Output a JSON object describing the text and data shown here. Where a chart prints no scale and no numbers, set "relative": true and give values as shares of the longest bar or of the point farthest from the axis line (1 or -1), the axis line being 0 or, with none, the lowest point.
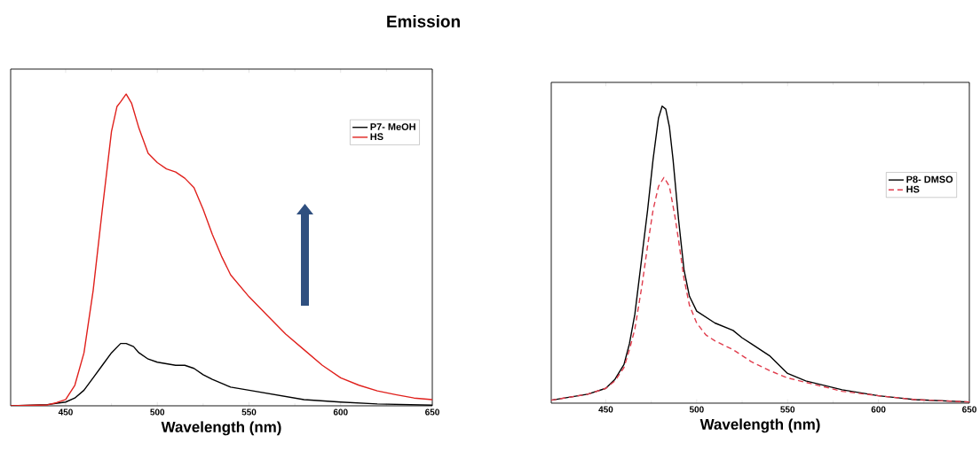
{
  "chart_data": [
    {
      "type": "line",
      "relative": true,
      "title": "Emission",
      "xlabel": "Wavelength (nm)",
      "xlim": [
        420,
        650
      ],
      "xticks": [
        450,
        500,
        550,
        600,
        650
      ],
      "legend": "top right",
      "tick_labels": "x",
      "series": [
        {
          "name": "P7- MeOH",
          "color": "#000000",
          "x": [
            420,
            440,
            450,
            455,
            460,
            465,
            470,
            475,
            480,
            483,
            487,
            490,
            495,
            500,
            510,
            515,
            520,
            525,
            530,
            540,
            550,
            560,
            570,
            580,
            600,
            620,
            650
          ],
          "values": [
            0,
            0.004,
            0.012,
            0.025,
            0.05,
            0.09,
            0.13,
            0.17,
            0.2,
            0.2,
            0.19,
            0.17,
            0.15,
            0.14,
            0.13,
            0.13,
            0.12,
            0.1,
            0.085,
            0.06,
            0.05,
            0.04,
            0.03,
            0.02,
            0.012,
            0.006,
            0.002
          ]
        },
        {
          "name": "HS",
          "color": "#e0201c",
          "x": [
            420,
            440,
            445,
            450,
            455,
            460,
            465,
            470,
            475,
            478,
            480,
            483,
            486,
            490,
            495,
            500,
            505,
            510,
            515,
            520,
            525,
            530,
            535,
            540,
            550,
            560,
            570,
            580,
            590,
            600,
            610,
            620,
            630,
            640,
            650
          ],
          "values": [
            0,
            0.003,
            0.01,
            0.02,
            0.066,
            0.17,
            0.37,
            0.63,
            0.88,
            0.96,
            0.975,
            1.0,
            0.97,
            0.89,
            0.81,
            0.78,
            0.76,
            0.75,
            0.73,
            0.7,
            0.63,
            0.55,
            0.48,
            0.42,
            0.35,
            0.29,
            0.23,
            0.18,
            0.13,
            0.09,
            0.066,
            0.048,
            0.036,
            0.025,
            0.02
          ]
        }
      ]
    },
    {
      "type": "line",
      "relative": true,
      "xlabel": "Wavelength (nm)",
      "xlim": [
        420,
        650
      ],
      "xticks": [
        450,
        500,
        550,
        600,
        650
      ],
      "legend": "right",
      "tick_labels": "x",
      "series": [
        {
          "name": "P8- DMSO",
          "color": "#000000",
          "x": [
            420,
            440,
            450,
            455,
            460,
            463,
            466,
            470,
            473,
            476,
            479,
            481,
            483,
            485,
            487,
            490,
            493,
            496,
            500,
            505,
            510,
            520,
            525,
            530,
            540,
            545,
            550,
            560,
            570,
            580,
            600,
            620,
            650
          ],
          "values": [
            0.01,
            0.03,
            0.05,
            0.08,
            0.13,
            0.2,
            0.3,
            0.5,
            0.65,
            0.82,
            0.96,
            1.0,
            0.99,
            0.93,
            0.82,
            0.62,
            0.45,
            0.36,
            0.31,
            0.29,
            0.27,
            0.245,
            0.22,
            0.2,
            0.16,
            0.13,
            0.1,
            0.075,
            0.06,
            0.045,
            0.025,
            0.012,
            0.004
          ]
        },
        {
          "name": "HS",
          "color": "#e03c4c",
          "line_style": "dashed",
          "x": [
            420,
            440,
            450,
            455,
            460,
            463,
            466,
            470,
            473,
            476,
            479,
            482,
            485,
            488,
            490,
            493,
            496,
            500,
            505,
            510,
            520,
            530,
            540,
            550,
            560,
            570,
            580,
            600,
            620,
            650
          ],
          "values": [
            0.01,
            0.03,
            0.05,
            0.075,
            0.12,
            0.18,
            0.25,
            0.4,
            0.53,
            0.65,
            0.73,
            0.76,
            0.73,
            0.63,
            0.55,
            0.42,
            0.33,
            0.27,
            0.23,
            0.21,
            0.18,
            0.14,
            0.11,
            0.085,
            0.07,
            0.055,
            0.04,
            0.025,
            0.012,
            0.004
          ]
        }
      ]
    }
  ]
}
